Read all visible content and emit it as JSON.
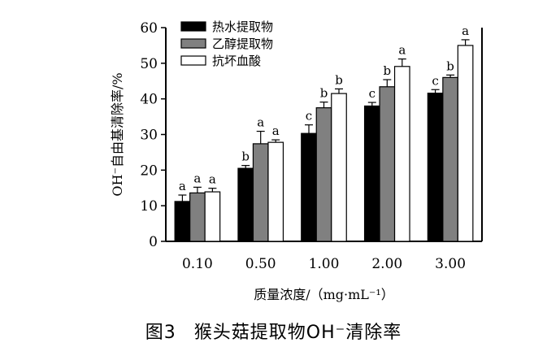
{
  "chart_data": {
    "type": "bar",
    "categories": [
      "0.10",
      "0.50",
      "1.00",
      "2.00",
      "3.00"
    ],
    "series": [
      {
        "name": "热水提取物",
        "color": "#000000",
        "values": [
          11.2,
          20.5,
          30.3,
          38.0,
          41.6
        ],
        "errors": [
          1.8,
          0.8,
          2.4,
          1.0,
          1.0
        ],
        "labels": [
          "a",
          "b",
          "c",
          "c",
          "c"
        ]
      },
      {
        "name": "乙醇提取物",
        "color": "#808080",
        "values": [
          13.6,
          27.4,
          37.5,
          43.4,
          46.0
        ],
        "errors": [
          1.6,
          3.5,
          1.6,
          2.0,
          0.7
        ],
        "labels": [
          "a",
          "a",
          "b",
          "b",
          "b"
        ]
      },
      {
        "name": "抗坏血酸",
        "color": "#ffffff",
        "values": [
          13.9,
          27.8,
          41.5,
          49.1,
          55.0
        ],
        "errors": [
          1.0,
          0.7,
          1.3,
          2.1,
          1.6
        ],
        "labels": [
          "a",
          "a",
          "b",
          "a",
          "a"
        ]
      }
    ],
    "title": "",
    "xlabel": "质量浓度/（mg·mL⁻¹）",
    "ylabel": "OH⁻自由基清除率/%",
    "ylim": [
      0,
      60
    ],
    "yticks": [
      0,
      10,
      20,
      30,
      40,
      50,
      60
    ],
    "legend": "top-left",
    "grid": false
  },
  "caption": {
    "figure": "图3",
    "text": "猴头菇提取物OH⁻清除率"
  }
}
